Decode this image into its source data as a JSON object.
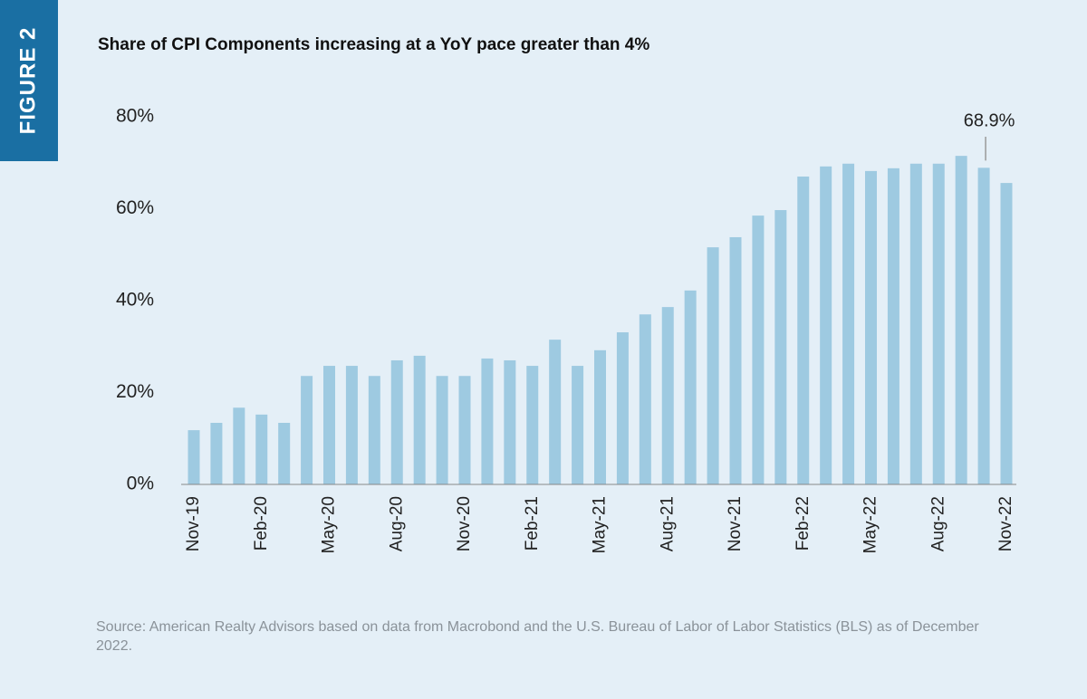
{
  "figure_label": "FIGURE 2",
  "chart_data": {
    "type": "bar",
    "title": "Share of CPI Components increasing at a YoY pace greater than 4%",
    "categories": [
      "Nov-19",
      null,
      null,
      "Feb-20",
      null,
      null,
      "May-20",
      null,
      null,
      "Aug-20",
      null,
      null,
      "Nov-20",
      null,
      null,
      "Feb-21",
      null,
      null,
      "May-21",
      null,
      null,
      "Aug-21",
      null,
      null,
      "Nov-21",
      null,
      null,
      "Feb-22",
      null,
      null,
      "May-22",
      null,
      null,
      "Aug-22",
      null,
      null,
      "Nov-22"
    ],
    "values": [
      11.8,
      13.4,
      16.7,
      15.2,
      13.4,
      23.6,
      25.8,
      25.8,
      23.6,
      27.0,
      28.0,
      23.6,
      23.6,
      27.4,
      27.0,
      25.8,
      31.5,
      25.8,
      29.2,
      33.1,
      37.0,
      38.6,
      42.2,
      51.6,
      53.8,
      58.5,
      59.7,
      67.0,
      69.2,
      69.8,
      68.2,
      68.8,
      69.8,
      69.8,
      71.5,
      68.9,
      65.6
    ],
    "value_labels": [
      null,
      null,
      null,
      null,
      null,
      null,
      null,
      null,
      null,
      null,
      null,
      null,
      null,
      null,
      null,
      null,
      null,
      null,
      null,
      null,
      null,
      null,
      null,
      null,
      null,
      null,
      null,
      null,
      null,
      null,
      null,
      null,
      null,
      null,
      null,
      "68.9%",
      null
    ],
    "color": "#9ecae1",
    "ylim": [
      0,
      80
    ],
    "yticks": [
      {
        "value": 0,
        "label": "0%"
      },
      {
        "value": 20,
        "label": "20%"
      },
      {
        "value": 40,
        "label": "40%"
      },
      {
        "value": 60,
        "label": "60%"
      },
      {
        "value": 80,
        "label": "80%"
      }
    ],
    "grid": false
  },
  "source": "Source: American Realty Advisors based on data from Macrobond and the U.S. Bureau of Labor of Labor Statistics (BLS) as of December 2022."
}
